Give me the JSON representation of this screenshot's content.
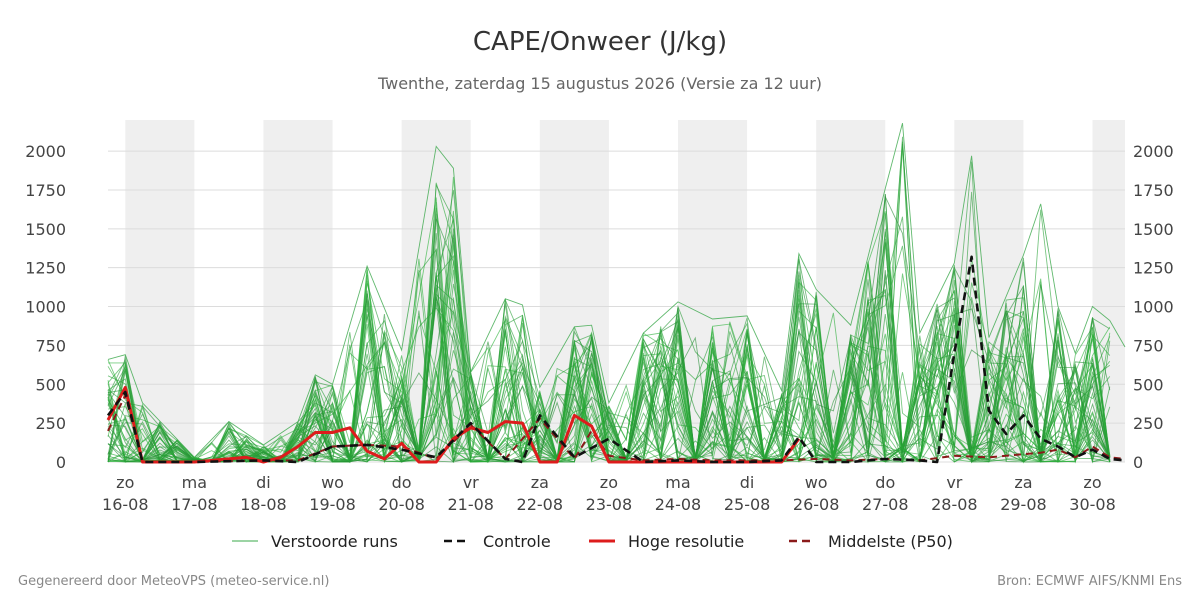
{
  "title": "CAPE/Onweer (J/kg)",
  "subtitle": "Twenthe, zaterdag 15 augustus 2026 (Versie za 12 uur)",
  "footer_left": "Gegenereerd door MeteoVPS (meteo-service.nl)",
  "footer_right": "Bron: ECMWF AIFS/KNMI Ens",
  "chart_data": {
    "type": "line",
    "x_unit": "dagen vanaf 16-08 00u",
    "xlim": [
      -0.25,
      14.47
    ],
    "ylim": [
      0,
      2200
    ],
    "yticks": [
      0,
      250,
      500,
      750,
      1000,
      1250,
      1500,
      1750,
      2000
    ],
    "xticks": [
      {
        "day": "zo",
        "date": "16-08"
      },
      {
        "day": "ma",
        "date": "17-08"
      },
      {
        "day": "di",
        "date": "18-08"
      },
      {
        "day": "wo",
        "date": "19-08"
      },
      {
        "day": "do",
        "date": "20-08"
      },
      {
        "day": "vr",
        "date": "21-08"
      },
      {
        "day": "za",
        "date": "22-08"
      },
      {
        "day": "zo",
        "date": "23-08"
      },
      {
        "day": "ma",
        "date": "24-08"
      },
      {
        "day": "di",
        "date": "25-08"
      },
      {
        "day": "wo",
        "date": "26-08"
      },
      {
        "day": "do",
        "date": "27-08"
      },
      {
        "day": "vr",
        "date": "28-08"
      },
      {
        "day": "za",
        "date": "29-08"
      },
      {
        "day": "zo",
        "date": "30-08"
      }
    ],
    "night_shading_color": "#efefef",
    "grid": true,
    "legend_position": "bottom",
    "legend": [
      {
        "name": "Verstoorde runs",
        "style": "thin-solid",
        "color": "#3aa84a"
      },
      {
        "name": "Controle",
        "style": "dashed",
        "color": "#111111"
      },
      {
        "name": "Hoge resolutie",
        "style": "solid",
        "color": "#dd1c1c"
      },
      {
        "name": "Middelste (P50)",
        "style": "dashed",
        "color": "#8b1a1a"
      }
    ],
    "series": [
      {
        "name": "Controle",
        "color": "#111111",
        "points": [
          [
            -0.25,
            300
          ],
          [
            0,
            450
          ],
          [
            0.25,
            0
          ],
          [
            1,
            0
          ],
          [
            2,
            10
          ],
          [
            2.5,
            0
          ],
          [
            3,
            100
          ],
          [
            3.5,
            110
          ],
          [
            4,
            80
          ],
          [
            4.5,
            30
          ],
          [
            5,
            250
          ],
          [
            5.5,
            20
          ],
          [
            5.75,
            0
          ],
          [
            6,
            300
          ],
          [
            6.5,
            30
          ],
          [
            7,
            150
          ],
          [
            7.5,
            0
          ],
          [
            8,
            10
          ],
          [
            8.5,
            0
          ],
          [
            9,
            0
          ],
          [
            9.5,
            10
          ],
          [
            9.75,
            160
          ],
          [
            10,
            0
          ],
          [
            10.5,
            0
          ],
          [
            11,
            20
          ],
          [
            11.5,
            10
          ],
          [
            11.75,
            0
          ],
          [
            12,
            700
          ],
          [
            12.25,
            1320
          ],
          [
            12.5,
            330
          ],
          [
            12.75,
            180
          ],
          [
            13,
            300
          ],
          [
            13.25,
            150
          ],
          [
            13.5,
            100
          ],
          [
            13.75,
            30
          ],
          [
            14,
            80
          ],
          [
            14.25,
            20
          ],
          [
            14.47,
            10
          ]
        ]
      },
      {
        "name": "Hoge resolutie",
        "color": "#dd1c1c",
        "points": [
          [
            -0.25,
            270
          ],
          [
            0,
            480
          ],
          [
            0.25,
            0
          ],
          [
            1,
            0
          ],
          [
            1.75,
            30
          ],
          [
            2,
            0
          ],
          [
            2.25,
            30
          ],
          [
            2.5,
            100
          ],
          [
            2.75,
            190
          ],
          [
            3,
            190
          ],
          [
            3.25,
            220
          ],
          [
            3.5,
            70
          ],
          [
            3.75,
            20
          ],
          [
            4,
            120
          ],
          [
            4.25,
            0
          ],
          [
            4.5,
            0
          ],
          [
            4.75,
            150
          ],
          [
            5,
            220
          ],
          [
            5.25,
            190
          ],
          [
            5.5,
            260
          ],
          [
            5.75,
            250
          ],
          [
            6,
            0
          ],
          [
            6.25,
            0
          ],
          [
            6.5,
            300
          ],
          [
            6.75,
            230
          ],
          [
            7,
            0
          ],
          [
            7.5,
            0
          ],
          [
            8,
            0
          ],
          [
            8.5,
            0
          ],
          [
            9,
            0
          ],
          [
            9.5,
            0
          ],
          [
            9.75,
            150
          ]
        ]
      },
      {
        "name": "Middelste (P50)",
        "color": "#8b1a1a",
        "points": [
          [
            -0.25,
            200
          ],
          [
            0,
            430
          ],
          [
            0.25,
            0
          ],
          [
            1,
            0
          ],
          [
            2,
            10
          ],
          [
            2.5,
            10
          ],
          [
            3,
            100
          ],
          [
            3.5,
            110
          ],
          [
            4,
            100
          ],
          [
            4.5,
            20
          ],
          [
            5,
            240
          ],
          [
            5.5,
            20
          ],
          [
            6,
            280
          ],
          [
            6.5,
            20
          ],
          [
            6.75,
            200
          ],
          [
            7,
            40
          ],
          [
            7.5,
            10
          ],
          [
            8,
            20
          ],
          [
            8.5,
            10
          ],
          [
            9,
            10
          ],
          [
            9.5,
            10
          ],
          [
            10,
            20
          ],
          [
            10.5,
            10
          ],
          [
            11,
            20
          ],
          [
            11.5,
            10
          ],
          [
            12,
            40
          ],
          [
            12.5,
            30
          ],
          [
            13,
            50
          ],
          [
            13.25,
            60
          ],
          [
            13.5,
            80
          ],
          [
            13.75,
            30
          ],
          [
            14,
            100
          ],
          [
            14.25,
            30
          ],
          [
            14.47,
            20
          ]
        ]
      }
    ],
    "ensemble_members_count": 50,
    "ensemble_max_envelope": [
      [
        -0.25,
        660
      ],
      [
        0,
        690
      ],
      [
        0.25,
        380
      ],
      [
        1,
        30
      ],
      [
        1.5,
        260
      ],
      [
        2,
        110
      ],
      [
        2.5,
        260
      ],
      [
        2.75,
        560
      ],
      [
        3,
        500
      ],
      [
        3.5,
        1260
      ],
      [
        4,
        720
      ],
      [
        4.5,
        2030
      ],
      [
        4.75,
        1890
      ],
      [
        5,
        580
      ],
      [
        5.5,
        1050
      ],
      [
        5.75,
        1010
      ],
      [
        6,
        480
      ],
      [
        6.5,
        870
      ],
      [
        6.75,
        880
      ],
      [
        7,
        380
      ],
      [
        7.5,
        830
      ],
      [
        8,
        1030
      ],
      [
        8.5,
        920
      ],
      [
        9,
        940
      ],
      [
        9.5,
        460
      ],
      [
        9.75,
        1340
      ],
      [
        10,
        1110
      ],
      [
        10.5,
        880
      ],
      [
        11,
        1760
      ],
      [
        11.25,
        2180
      ],
      [
        11.5,
        830
      ],
      [
        12,
        1280
      ],
      [
        12.25,
        1970
      ],
      [
        12.5,
        800
      ],
      [
        13,
        1330
      ],
      [
        13.25,
        1660
      ],
      [
        13.5,
        1000
      ],
      [
        13.75,
        700
      ],
      [
        14,
        1000
      ],
      [
        14.25,
        910
      ],
      [
        14.47,
        740
      ]
    ]
  }
}
